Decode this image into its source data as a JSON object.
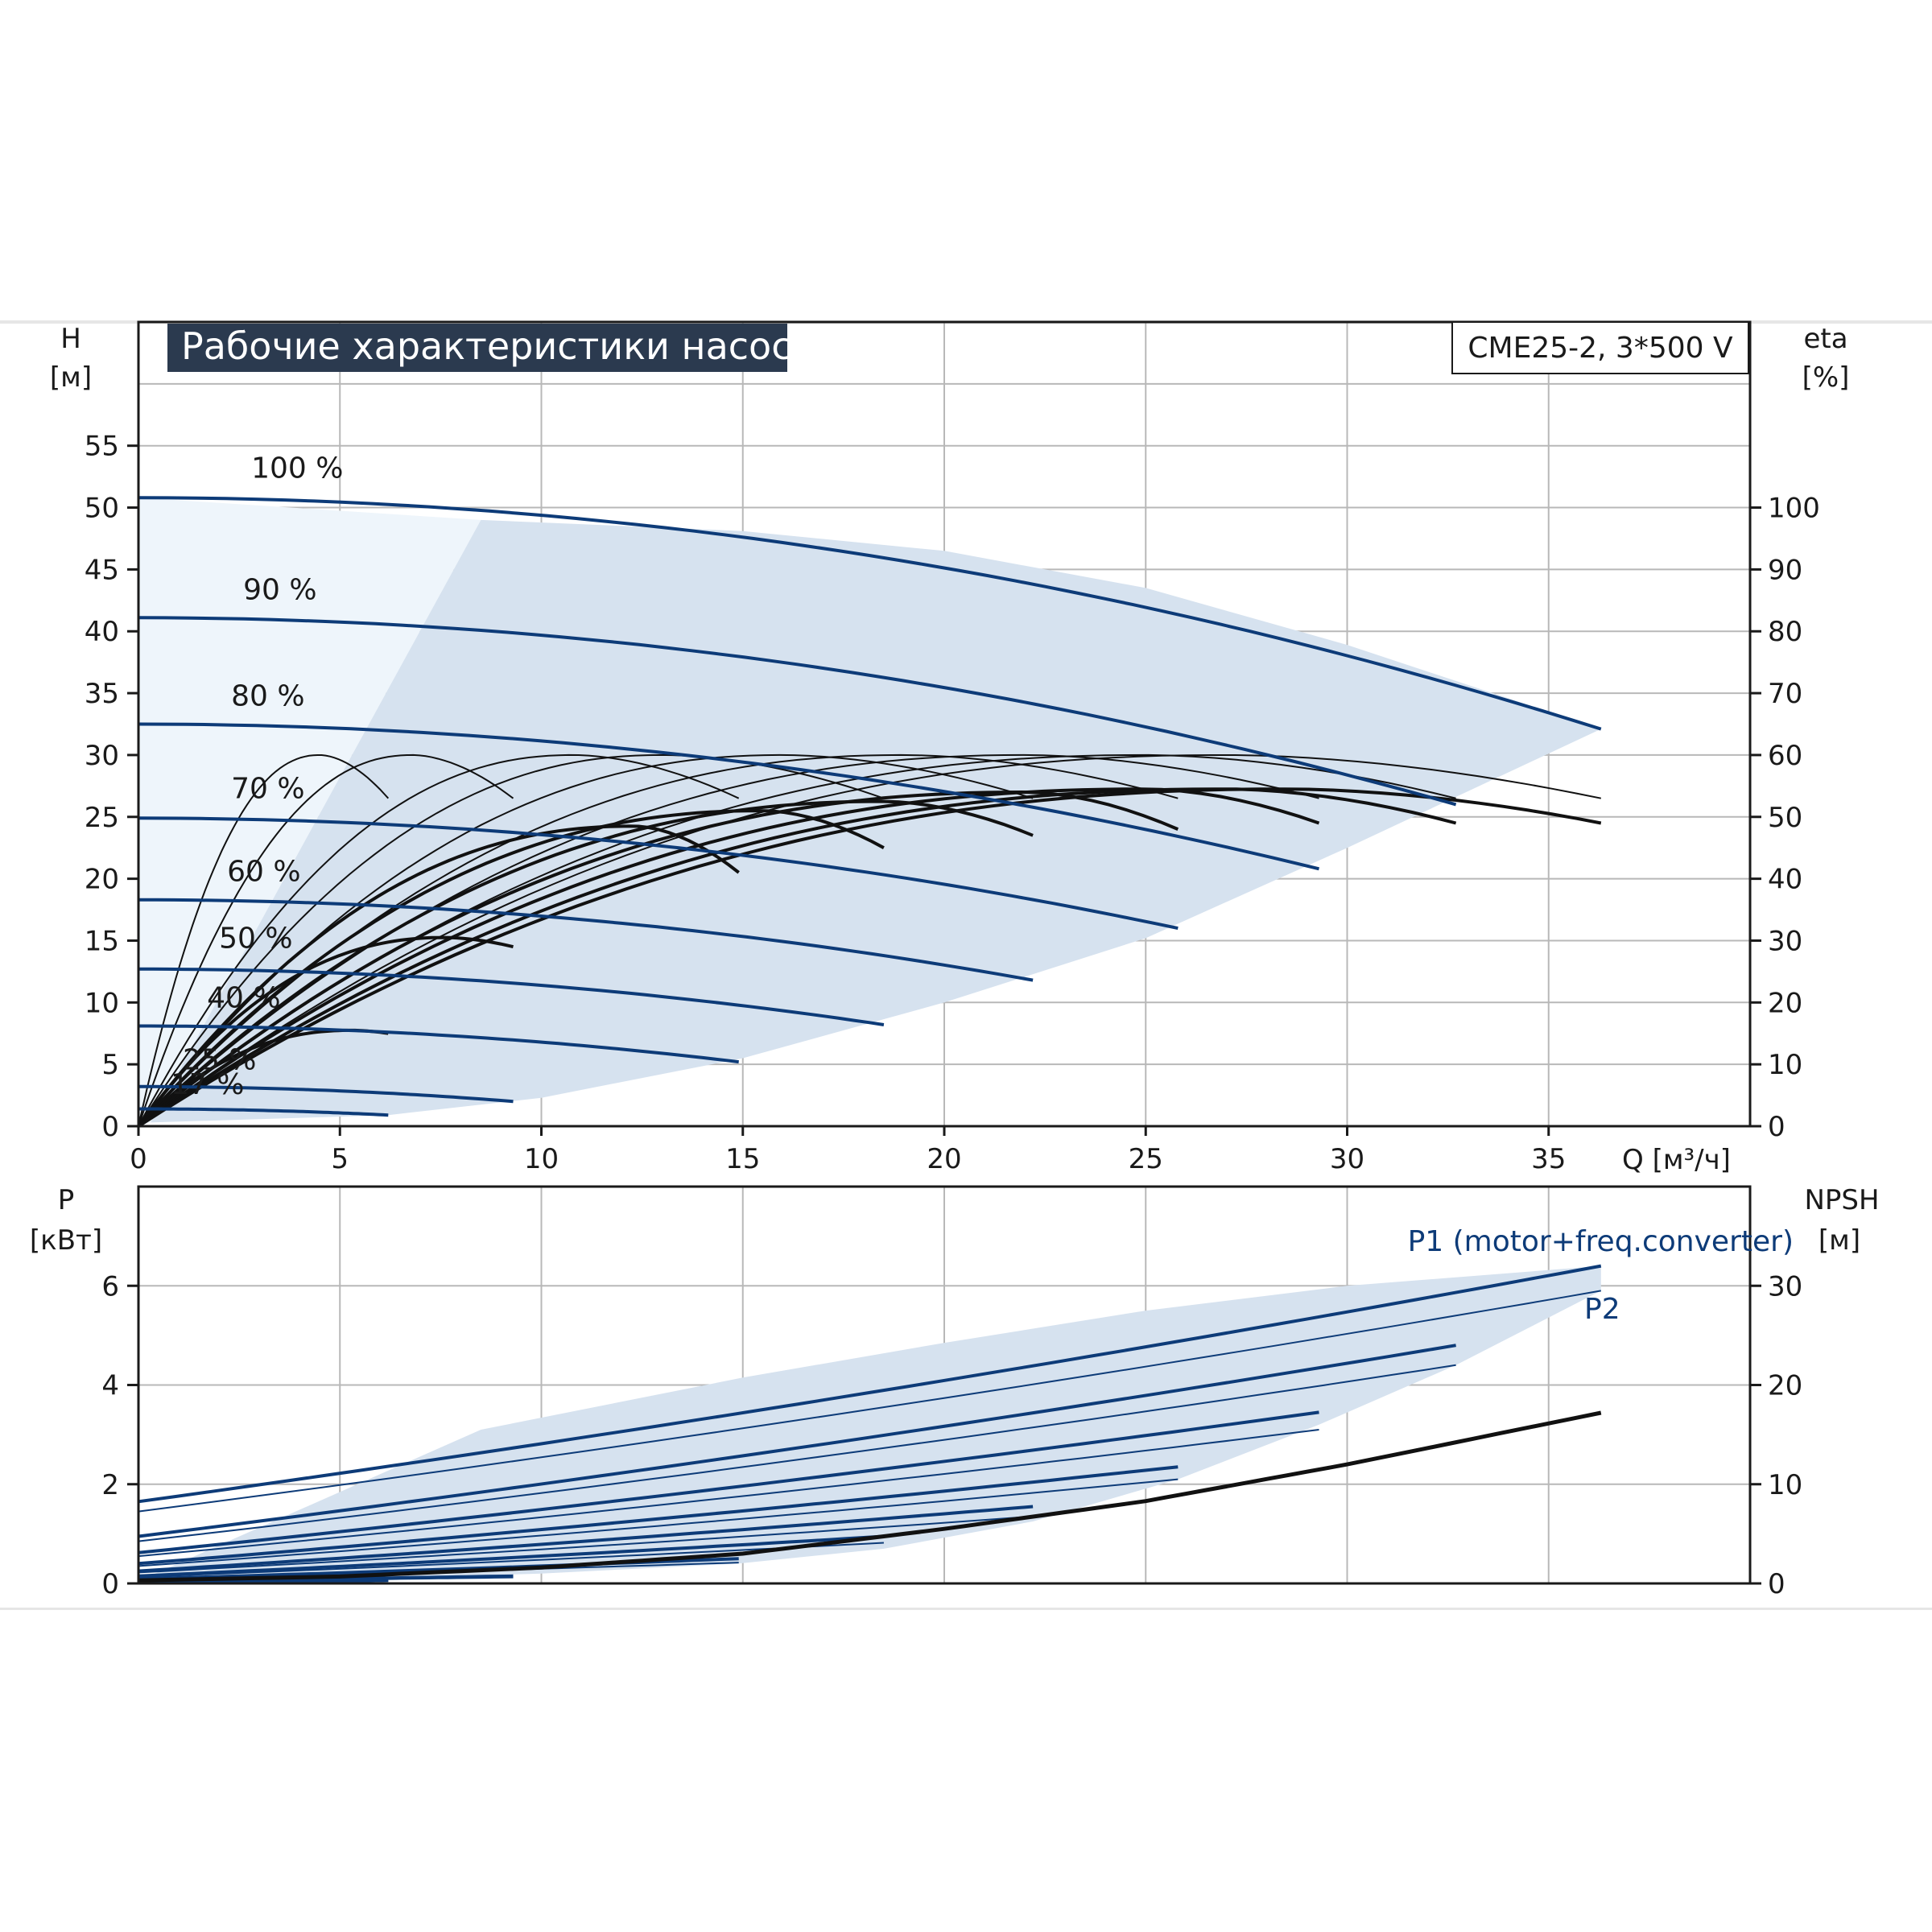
{
  "chart_data": [
    {
      "type": "line",
      "panel": "head-efficiency",
      "title": "Рабочие характеристики насоса",
      "model": "CME25-2, 3*500 V",
      "xlabel": "Q [м³/ч]",
      "ylabel": [
        "H",
        "[м]"
      ],
      "y2label": [
        "eta",
        "[%]"
      ],
      "xlim": [
        0,
        40
      ],
      "ylim": [
        0,
        65
      ],
      "y2lim": [
        0,
        130
      ],
      "xticks": [
        0,
        5,
        10,
        15,
        20,
        25,
        30,
        35
      ],
      "yticks": [
        0,
        5,
        10,
        15,
        20,
        25,
        30,
        35,
        40,
        45,
        50,
        55
      ],
      "y2ticks": [
        0,
        10,
        20,
        30,
        40,
        50,
        60,
        70,
        80,
        90,
        100
      ],
      "grid": true,
      "operating_area": {
        "upper": [
          [
            8.5,
            49
          ],
          [
            15,
            48.1
          ],
          [
            20,
            46.5
          ],
          [
            25,
            43.5
          ],
          [
            30,
            38.9
          ],
          [
            36.3,
            32.1
          ]
        ],
        "lower": [
          [
            36.3,
            32.1
          ],
          [
            30,
            22.5
          ],
          [
            25,
            15.2
          ],
          [
            20,
            10
          ],
          [
            15,
            5.5
          ],
          [
            10,
            2.3
          ],
          [
            6.2,
            0.9
          ],
          [
            0.3,
            0.3
          ]
        ],
        "color": "#d6e2ef"
      },
      "head_curves": [
        {
          "label": "100 %",
          "q_max": 36.3,
          "h0": 50.8,
          "h_end": 32.1
        },
        {
          "label": "90 %",
          "q_max": 32.7,
          "h0": 41.1,
          "h_end": 26.0
        },
        {
          "label": "80 %",
          "q_max": 29.3,
          "h0": 32.5,
          "h_end": 20.8
        },
        {
          "label": "70 %",
          "q_max": 25.8,
          "h0": 24.9,
          "h_end": 16.0
        },
        {
          "label": "60 %",
          "q_max": 22.2,
          "h0": 18.3,
          "h_end": 11.8
        },
        {
          "label": "50 %",
          "q_max": 18.5,
          "h0": 12.7,
          "h_end": 8.2
        },
        {
          "label": "40 %",
          "q_max": 14.9,
          "h0": 8.1,
          "h_end": 5.2
        },
        {
          "label": "25 %",
          "q_max": 9.3,
          "h0": 3.2,
          "h_end": 2.0
        },
        {
          "label": "17 %",
          "q_max": 6.2,
          "h0": 1.4,
          "h_end": 0.9
        }
      ],
      "efficiency_curves": [
        {
          "q_peak": 4.5,
          "eta_peak": 60,
          "q_end": 6.2,
          "eta_end": 53
        },
        {
          "q_peak": 6.8,
          "eta_peak": 60,
          "q_end": 9.3,
          "eta_end": 53
        },
        {
          "q_peak": 7.6,
          "eta_peak": 30.5,
          "q_end": 9.3,
          "eta_end": 29
        },
        {
          "q_peak": 5.3,
          "eta_peak": 15.5,
          "q_end": 6.2,
          "eta_end": 15
        },
        {
          "q_peak": 10.8,
          "eta_peak": 60,
          "q_end": 14.9,
          "eta_end": 53
        },
        {
          "q_peak": 13,
          "eta_peak": 60,
          "q_end": 18.5,
          "eta_end": 53
        },
        {
          "q_peak": 16,
          "eta_peak": 60,
          "q_end": 22.2,
          "eta_end": 53
        },
        {
          "q_peak": 19,
          "eta_peak": 60,
          "q_end": 25.8,
          "eta_end": 53
        },
        {
          "q_peak": 22,
          "eta_peak": 60,
          "q_end": 29.3,
          "eta_end": 53
        },
        {
          "q_peak": 25,
          "eta_peak": 60,
          "q_end": 32.7,
          "eta_end": 53
        },
        {
          "q_peak": 27,
          "eta_peak": 60,
          "q_end": 36.3,
          "eta_end": 53
        },
        {
          "q_peak": 12.3,
          "eta_peak": 48.5,
          "q_end": 14.9,
          "eta_end": 41
        },
        {
          "q_peak": 15.5,
          "eta_peak": 51,
          "q_end": 18.5,
          "eta_end": 45
        },
        {
          "q_peak": 18.5,
          "eta_peak": 52.5,
          "q_end": 22.2,
          "eta_end": 47
        },
        {
          "q_peak": 22,
          "eta_peak": 54,
          "q_end": 25.8,
          "eta_end": 48
        },
        {
          "q_peak": 25,
          "eta_peak": 54.5,
          "q_end": 29.3,
          "eta_end": 49
        },
        {
          "q_peak": 27,
          "eta_peak": 54.5,
          "q_end": 32.7,
          "eta_end": 49
        },
        {
          "q_peak": 28.5,
          "eta_peak": 54.5,
          "q_end": 36.3,
          "eta_end": 49
        }
      ]
    },
    {
      "type": "line",
      "panel": "power-npsh",
      "ylabel": [
        "P",
        "[кВт]"
      ],
      "y2label": [
        "NPSH",
        "[м]"
      ],
      "xlim": [
        0,
        40
      ],
      "ylim": [
        0,
        8
      ],
      "y2lim": [
        0,
        40
      ],
      "yticks": [
        0,
        2,
        4,
        6
      ],
      "y2ticks": [
        0,
        10,
        20,
        30
      ],
      "grid": true,
      "series_labels": {
        "p1": "P1 (motor+freq.converter)",
        "p2": "P2"
      },
      "operating_area": {
        "upper": [
          [
            8.5,
            3.1
          ],
          [
            15,
            4.15
          ],
          [
            20,
            4.85
          ],
          [
            25,
            5.5
          ],
          [
            30,
            6.0
          ],
          [
            36.3,
            6.4
          ]
        ],
        "lower": [
          [
            36.3,
            5.9
          ],
          [
            32.7,
            4.4
          ],
          [
            29.3,
            3.2
          ],
          [
            25.8,
            2.1
          ],
          [
            22.2,
            1.25
          ],
          [
            18.5,
            0.7
          ],
          [
            14.9,
            0.4
          ],
          [
            10,
            0.2
          ],
          [
            6.2,
            0.1
          ],
          [
            0,
            0.05
          ]
        ],
        "color": "#d6e2ef"
      },
      "power_curves": [
        {
          "q_max": 36.3,
          "p1_0": 1.65,
          "p1_end": 6.4,
          "p2_0": 1.45,
          "p2_end": 5.9
        },
        {
          "q_max": 32.7,
          "p1_0": 0.95,
          "p1_end": 4.8,
          "p2_0": 0.85,
          "p2_end": 4.4
        },
        {
          "q_max": 29.3,
          "p1_0": 0.62,
          "p1_end": 3.45,
          "p2_0": 0.55,
          "p2_end": 3.1
        },
        {
          "q_max": 25.8,
          "p1_0": 0.4,
          "p1_end": 2.35,
          "p2_0": 0.35,
          "p2_end": 2.1
        },
        {
          "q_max": 22.2,
          "p1_0": 0.25,
          "p1_end": 1.55,
          "p2_0": 0.22,
          "p2_end": 1.35
        },
        {
          "q_max": 18.5,
          "p1_0": 0.15,
          "p1_end": 0.95,
          "p2_0": 0.13,
          "p2_end": 0.82
        },
        {
          "q_max": 14.9,
          "p1_0": 0.09,
          "p1_end": 0.5,
          "p2_0": 0.08,
          "p2_end": 0.42
        },
        {
          "q_max": 9.3,
          "p1_0": 0.04,
          "p1_end": 0.15,
          "p2_0": 0.03,
          "p2_end": 0.12
        },
        {
          "q_max": 6.2,
          "p1_0": 0.02,
          "p1_end": 0.06,
          "p2_0": 0.02,
          "p2_end": 0.05
        }
      ],
      "npsh_curve": [
        [
          0,
          0.3
        ],
        [
          5,
          0.7
        ],
        [
          10,
          1.6
        ],
        [
          15,
          3.0
        ],
        [
          20,
          5.5
        ],
        [
          25,
          8.3
        ],
        [
          30,
          12.0
        ],
        [
          36.3,
          17.2
        ]
      ]
    }
  ]
}
